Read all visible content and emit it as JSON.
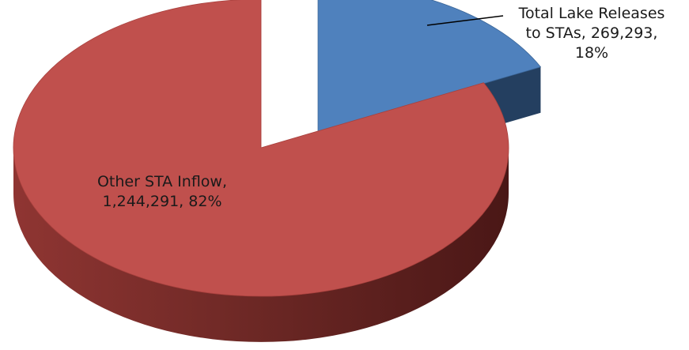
{
  "chart_data": {
    "type": "pie",
    "style": "3d-exploded",
    "title": "",
    "slices": [
      {
        "label": "Total Lake Releases to STAs",
        "value": 269293,
        "percent": "18%",
        "value_text": "269,293",
        "color": "#4f81bd",
        "side_color": "#243f60",
        "exploded": true,
        "label_lines": [
          "Total Lake Releases",
          "to STAs, 269,293,",
          "18%"
        ]
      },
      {
        "label": "Other STA Inflow",
        "value": 1244291,
        "percent": "82%",
        "value_text": "1,244,291",
        "color": "#c0504d",
        "side_color": "#632523",
        "exploded": false,
        "label_lines": [
          "Other STA Inflow,",
          "1,244,291, 82%"
        ]
      }
    ],
    "legend": "none"
  }
}
